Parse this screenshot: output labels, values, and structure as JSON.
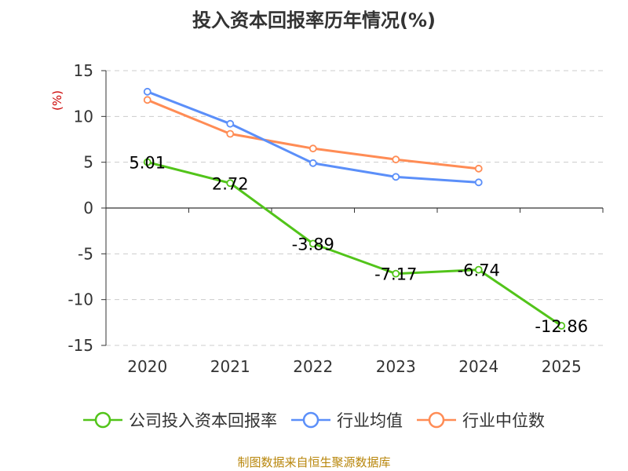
{
  "chart_data": {
    "type": "line",
    "title": "投入资本回报率历年情况(%)",
    "ylabel": "(%)",
    "xlabel": "",
    "categories": [
      "2020",
      "2021",
      "2022",
      "2023",
      "2024",
      "2025"
    ],
    "ylim": [
      -15,
      15
    ],
    "yticks": [
      15,
      10,
      5,
      0,
      -5,
      -10,
      -15
    ],
    "grid": true,
    "legend": "bottom",
    "series": [
      {
        "name": "公司投入资本回报率",
        "color": "#52c41a",
        "values": [
          5.01,
          2.72,
          -3.89,
          -7.17,
          -6.74,
          -12.86
        ],
        "labels": [
          "5.01",
          "2.72",
          "-3.89",
          "-7.17",
          "-6.74",
          "-12.86"
        ],
        "show_labels": true
      },
      {
        "name": "行业均值",
        "color": "#5b8ff9",
        "values": [
          12.7,
          9.2,
          4.9,
          3.4,
          2.8,
          null
        ],
        "show_labels": false
      },
      {
        "name": "行业中位数",
        "color": "#ff8c55",
        "values": [
          11.8,
          8.1,
          6.5,
          5.3,
          4.3,
          null
        ],
        "show_labels": false
      }
    ]
  },
  "source": "制图数据来自恒生聚源数据库"
}
